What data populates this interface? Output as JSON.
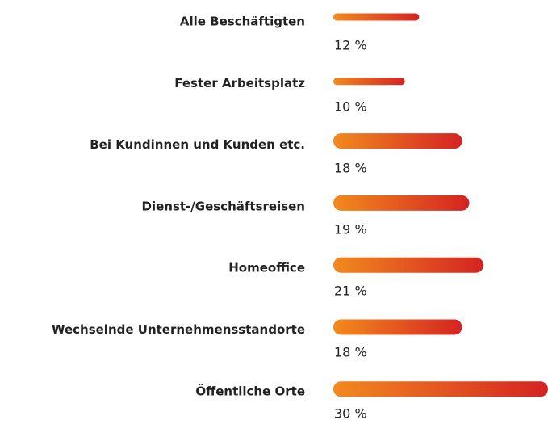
{
  "chart_data": {
    "type": "bar",
    "orientation": "horizontal",
    "categories": [
      "Alle Beschäftigten",
      "Fester Arbeitsplatz",
      "Bei Kundinnen und Kunden etc.",
      "Dienst-/Geschäftsreisen",
      "Homeoffice",
      "Wechselnde Unternehmensstandorte",
      "Öffentliche Orte"
    ],
    "values": [
      12,
      10,
      18,
      19,
      21,
      18,
      30
    ],
    "value_labels": [
      "12 %",
      "10 %",
      "18 %",
      "19 %",
      "21 %",
      "18 %",
      "30 %"
    ],
    "color": [
      "#f28a1e",
      "#d42323"
    ]
  }
}
